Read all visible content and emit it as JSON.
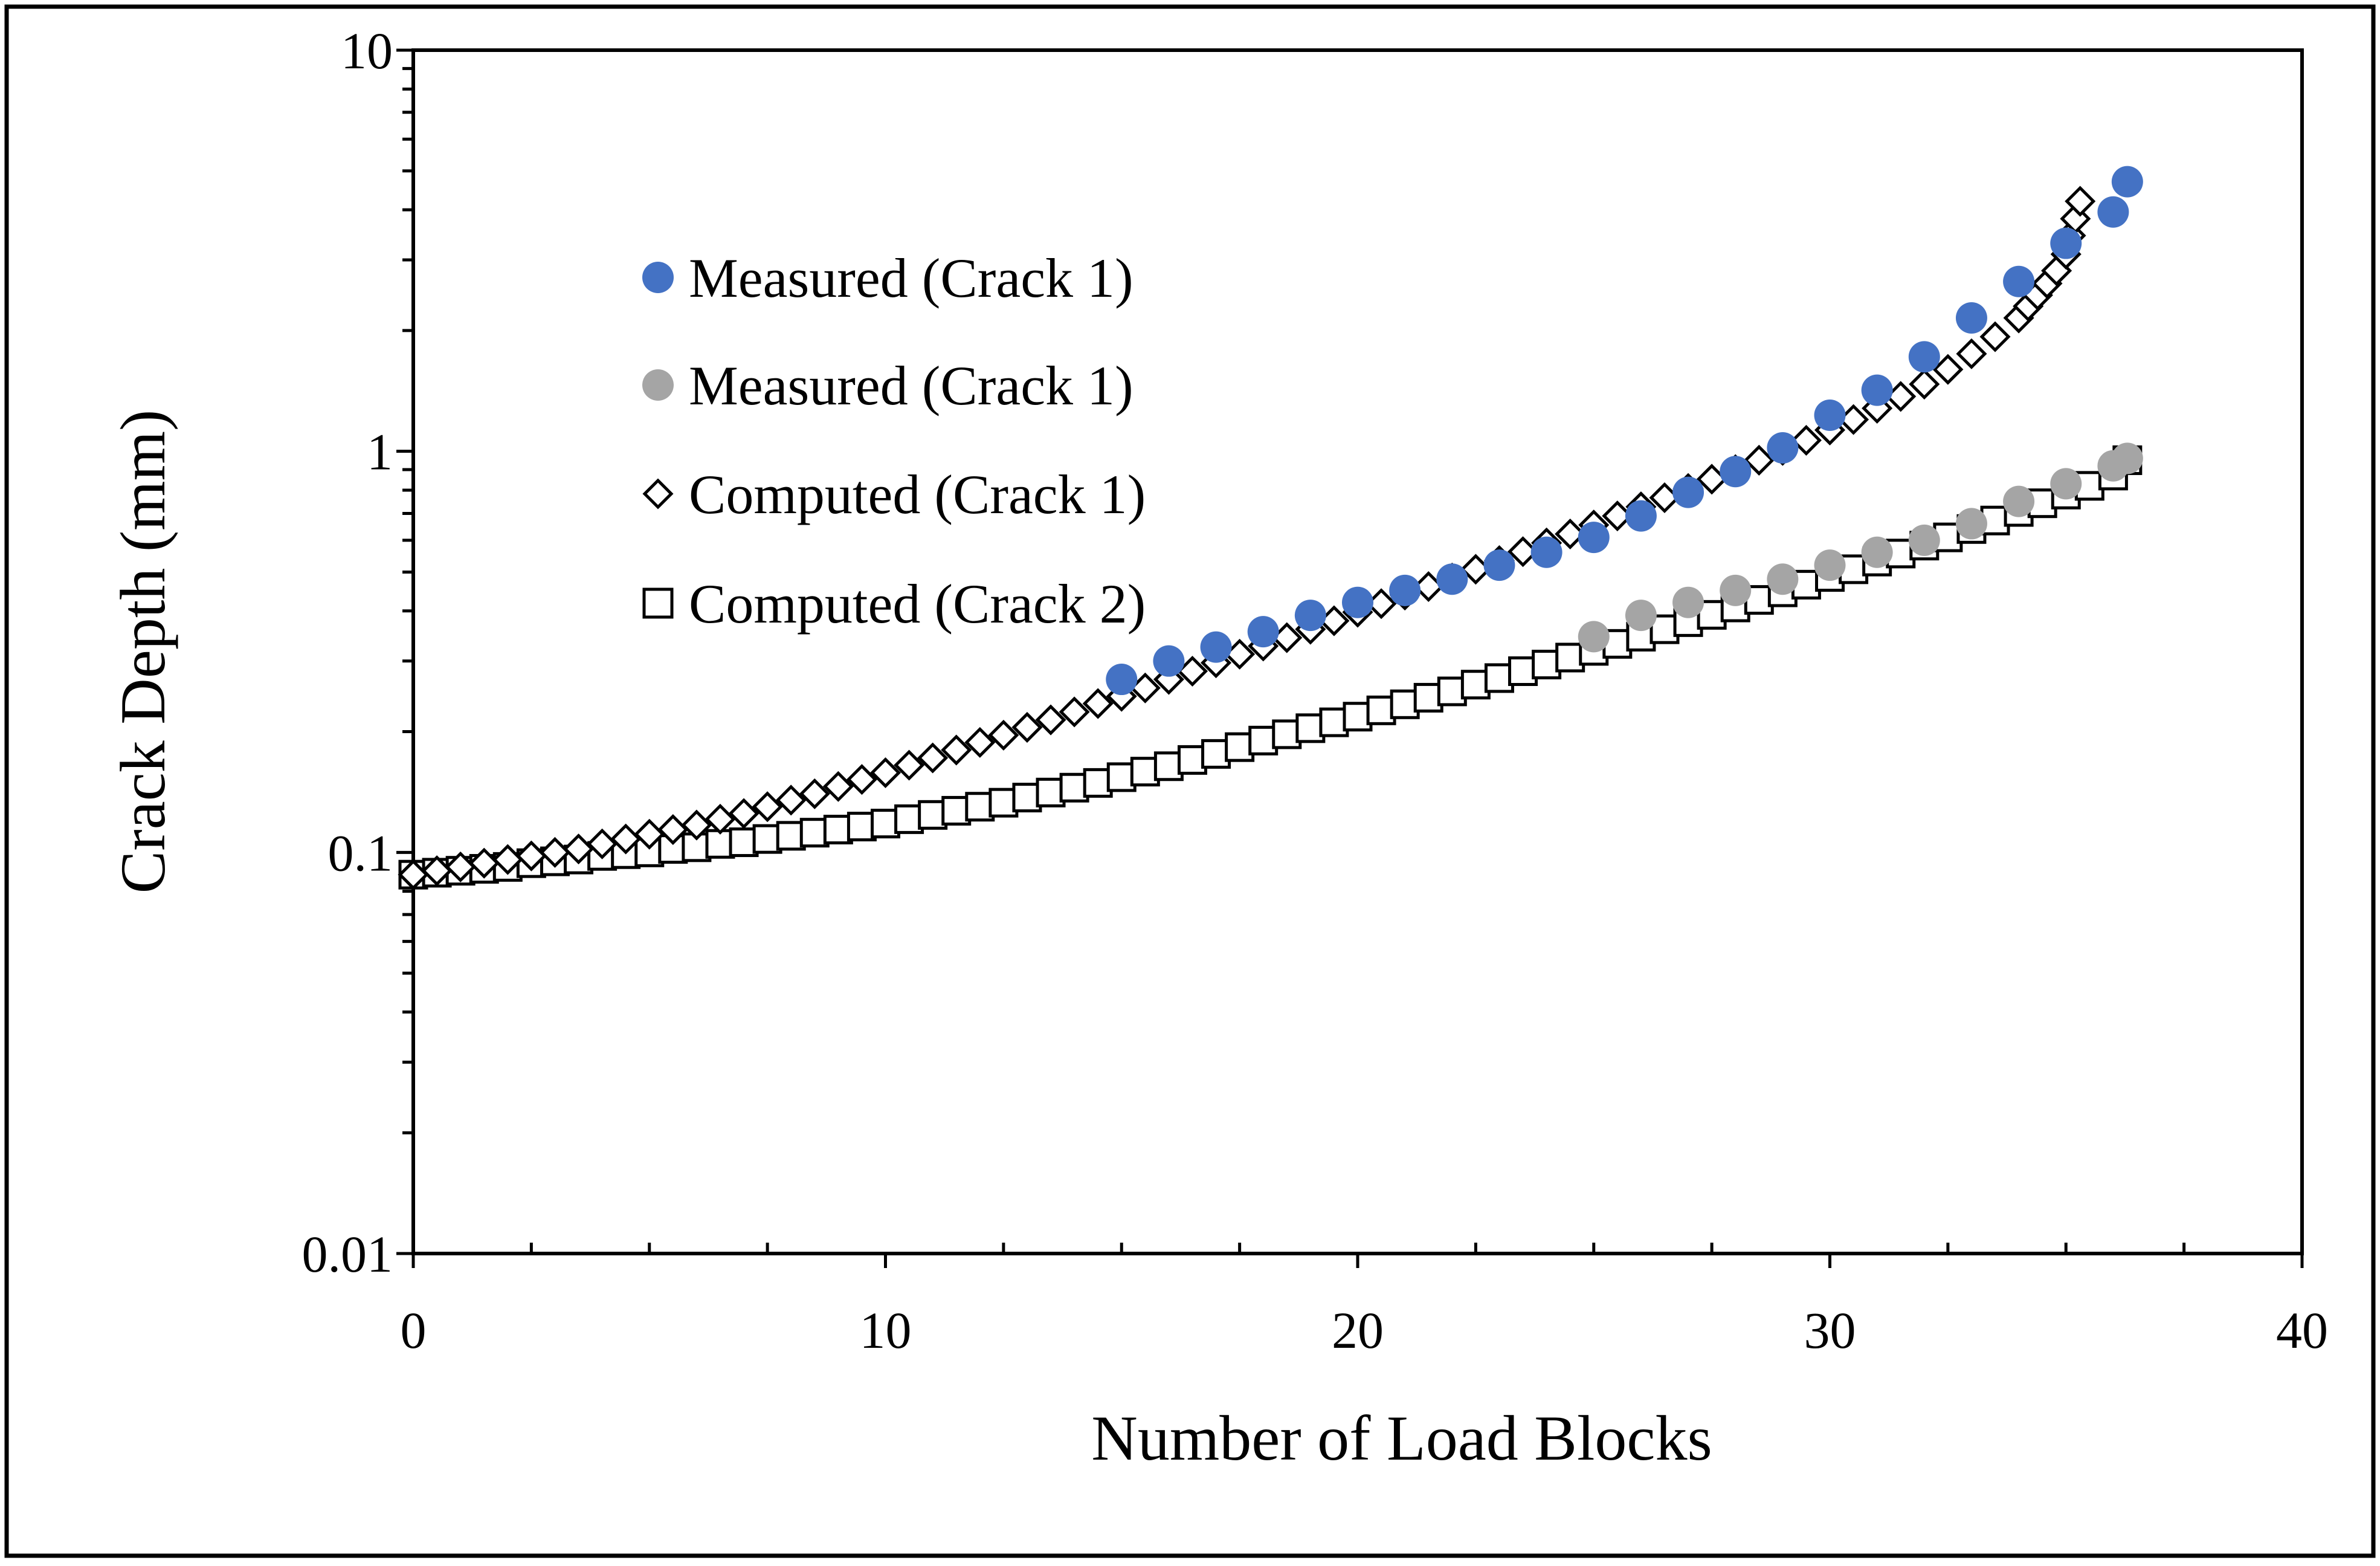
{
  "chart_data": {
    "type": "scatter",
    "title": "",
    "xlabel": "Number of Load Blocks",
    "ylabel": "Crack Depth (mm)",
    "xlim": [
      0,
      40
    ],
    "ylim": [
      0.01,
      10
    ],
    "yscale": "log",
    "grid": false,
    "legend_position": "upper-left",
    "x_ticks": [
      {
        "value": 0,
        "label": "0"
      },
      {
        "value": 10,
        "label": "10"
      },
      {
        "value": 20,
        "label": "20"
      },
      {
        "value": 30,
        "label": "30"
      },
      {
        "value": 40,
        "label": "40"
      }
    ],
    "y_ticks": [
      {
        "value": 0.01,
        "label": "0.01"
      },
      {
        "value": 0.1,
        "label": "0.1"
      },
      {
        "value": 1,
        "label": "1"
      },
      {
        "value": 10,
        "label": "10"
      }
    ],
    "series": [
      {
        "name": "Measured (Crack 1)",
        "marker": "circle",
        "color": "#4472c4",
        "x": [
          15,
          16,
          17,
          18,
          19,
          20,
          21,
          22,
          23,
          24,
          25,
          26,
          27,
          28,
          29,
          30,
          31,
          32,
          33,
          34,
          35,
          36,
          36.3
        ],
        "y": [
          0.27,
          0.3,
          0.325,
          0.355,
          0.39,
          0.42,
          0.45,
          0.48,
          0.52,
          0.56,
          0.61,
          0.69,
          0.79,
          0.89,
          1.02,
          1.23,
          1.42,
          1.72,
          2.15,
          2.65,
          3.3,
          3.95,
          4.7
        ]
      },
      {
        "name": "Measured (Crack 1)",
        "marker": "circle",
        "color": "#a5a5a5",
        "x": [
          25,
          26,
          27,
          28,
          29,
          30,
          31,
          32,
          33,
          34,
          35,
          36,
          36.3
        ],
        "y": [
          0.345,
          0.39,
          0.42,
          0.45,
          0.48,
          0.52,
          0.56,
          0.6,
          0.66,
          0.75,
          0.83,
          0.92,
          0.96
        ]
      },
      {
        "name": "Computed (Crack 1)",
        "marker": "diamond-open",
        "color": "#000000",
        "x": [
          0,
          0.5,
          1,
          1.5,
          2,
          2.5,
          3,
          3.5,
          4,
          4.5,
          5,
          5.5,
          6,
          6.5,
          7,
          7.5,
          8,
          8.5,
          9,
          9.5,
          10,
          10.5,
          11,
          11.5,
          12,
          12.5,
          13,
          13.5,
          14,
          14.5,
          15,
          15.5,
          16,
          16.5,
          17,
          17.5,
          18,
          18.5,
          19,
          19.5,
          20,
          20.5,
          21,
          21.5,
          22,
          22.5,
          23,
          23.5,
          24,
          24.5,
          25,
          25.5,
          26,
          26.5,
          27,
          27.5,
          28,
          28.5,
          29,
          29.5,
          30,
          30.5,
          31,
          31.5,
          32,
          32.5,
          33,
          33.5,
          34,
          34.2,
          34.4,
          34.6,
          34.8,
          35,
          35.1,
          35.2,
          35.3
        ],
        "y": [
          0.088,
          0.09,
          0.092,
          0.094,
          0.096,
          0.098,
          0.1,
          0.102,
          0.105,
          0.108,
          0.111,
          0.114,
          0.117,
          0.121,
          0.125,
          0.13,
          0.135,
          0.14,
          0.146,
          0.152,
          0.158,
          0.165,
          0.172,
          0.18,
          0.188,
          0.196,
          0.205,
          0.214,
          0.224,
          0.235,
          0.245,
          0.257,
          0.27,
          0.283,
          0.297,
          0.312,
          0.327,
          0.343,
          0.36,
          0.378,
          0.397,
          0.417,
          0.438,
          0.46,
          0.483,
          0.508,
          0.534,
          0.562,
          0.591,
          0.622,
          0.655,
          0.69,
          0.727,
          0.766,
          0.808,
          0.852,
          0.9,
          0.95,
          1.005,
          1.065,
          1.13,
          1.2,
          1.28,
          1.37,
          1.47,
          1.6,
          1.75,
          1.93,
          2.15,
          2.3,
          2.45,
          2.62,
          2.82,
          3.1,
          3.45,
          3.8,
          4.2
        ]
      },
      {
        "name": "Computed (Crack 2)",
        "marker": "square-open",
        "color": "#000000",
        "x": [
          0,
          0.5,
          1,
          1.5,
          2,
          2.5,
          3,
          3.5,
          4,
          4.5,
          5,
          5.5,
          6,
          6.5,
          7,
          7.5,
          8,
          8.5,
          9,
          9.5,
          10,
          10.5,
          11,
          11.5,
          12,
          12.5,
          13,
          13.5,
          14,
          14.5,
          15,
          15.5,
          16,
          16.5,
          17,
          17.5,
          18,
          18.5,
          19,
          19.5,
          20,
          20.5,
          21,
          21.5,
          22,
          22.5,
          23,
          23.5,
          24,
          24.5,
          25,
          25.5,
          26,
          26.5,
          27,
          27.5,
          28,
          28.5,
          29,
          29.5,
          30,
          30.5,
          31,
          31.5,
          32,
          32.5,
          33,
          33.5,
          34,
          34.5,
          35,
          35.5,
          36,
          36.3
        ],
        "y": [
          0.088,
          0.089,
          0.09,
          0.091,
          0.092,
          0.094,
          0.095,
          0.096,
          0.098,
          0.099,
          0.1,
          0.102,
          0.103,
          0.105,
          0.106,
          0.108,
          0.11,
          0.112,
          0.114,
          0.116,
          0.118,
          0.121,
          0.124,
          0.127,
          0.13,
          0.133,
          0.137,
          0.141,
          0.145,
          0.149,
          0.154,
          0.159,
          0.164,
          0.17,
          0.176,
          0.183,
          0.19,
          0.197,
          0.204,
          0.211,
          0.218,
          0.226,
          0.234,
          0.243,
          0.252,
          0.262,
          0.272,
          0.283,
          0.294,
          0.306,
          0.318,
          0.331,
          0.345,
          0.36,
          0.375,
          0.391,
          0.408,
          0.426,
          0.445,
          0.465,
          0.486,
          0.508,
          0.531,
          0.556,
          0.582,
          0.61,
          0.64,
          0.672,
          0.706,
          0.742,
          0.78,
          0.82,
          0.87,
          0.95
        ]
      }
    ]
  }
}
